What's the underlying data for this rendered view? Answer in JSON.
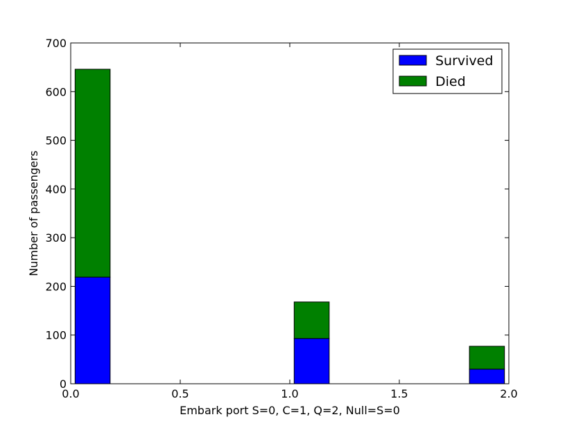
{
  "chart_data": {
    "type": "bar",
    "stacked": true,
    "histogram": true,
    "xlabel": "Embark port S=0, C=1, Q=2, Null=S=0",
    "ylabel": "Number of passengers",
    "xlim": [
      0.0,
      2.0
    ],
    "ylim": [
      0,
      700
    ],
    "x_ticks": [
      "0.0",
      "0.5",
      "1.0",
      "1.5",
      "2.0"
    ],
    "y_ticks": [
      "0",
      "100",
      "200",
      "300",
      "400",
      "500",
      "600",
      "700"
    ],
    "bins": [
      [
        0.0,
        0.2
      ],
      [
        0.2,
        0.4
      ],
      [
        0.4,
        0.6
      ],
      [
        0.6,
        0.8
      ],
      [
        0.8,
        1.0
      ],
      [
        1.0,
        1.2
      ],
      [
        1.2,
        1.4
      ],
      [
        1.4,
        1.6
      ],
      [
        1.6,
        1.8
      ],
      [
        1.8,
        2.0
      ]
    ],
    "series": [
      {
        "name": "Survived",
        "color": "#0000ff",
        "values": [
          219,
          0,
          0,
          0,
          0,
          93,
          0,
          0,
          0,
          30
        ]
      },
      {
        "name": "Died",
        "color": "#008000",
        "values": [
          427,
          0,
          0,
          0,
          0,
          75,
          0,
          0,
          0,
          47
        ]
      }
    ],
    "grid": false,
    "legend_position": "top-right"
  }
}
